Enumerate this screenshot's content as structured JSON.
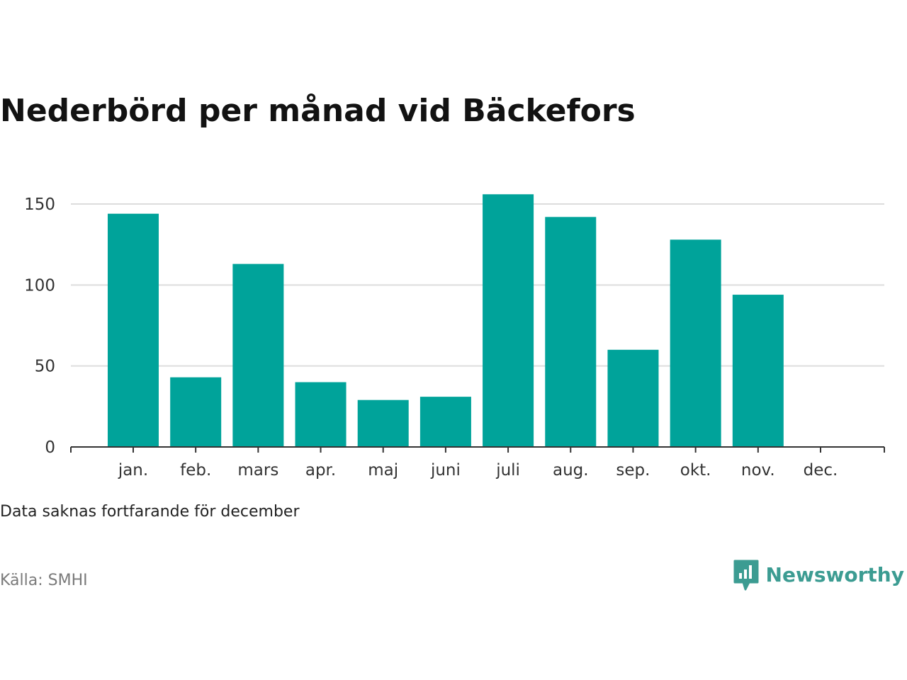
{
  "title": "Nederbörd per månad vid Bäckefors",
  "note": "Data saknas fortfarande för december",
  "source": "Källa: SMHI",
  "brand": {
    "name": "Newsworthy",
    "logo_icon": "bar-chart-speech-bubble-icon",
    "color": "#3c9c92"
  },
  "colors": {
    "bar": "#00a39a",
    "grid": "#dddddd",
    "axis": "#333333"
  },
  "chart_data": {
    "type": "bar",
    "title": "Nederbörd per månad vid Bäckefors",
    "categories": [
      "jan.",
      "feb.",
      "mars",
      "apr.",
      "maj",
      "juni",
      "juli",
      "aug.",
      "sep.",
      "okt.",
      "nov.",
      "dec."
    ],
    "values": [
      144,
      43,
      113,
      40,
      29,
      31,
      156,
      142,
      60,
      128,
      94,
      null
    ],
    "ylim": [
      0,
      150
    ],
    "yticks": [
      0,
      50,
      100,
      150
    ],
    "xlabel": "",
    "ylabel": "",
    "grid": true,
    "legend": "none"
  }
}
